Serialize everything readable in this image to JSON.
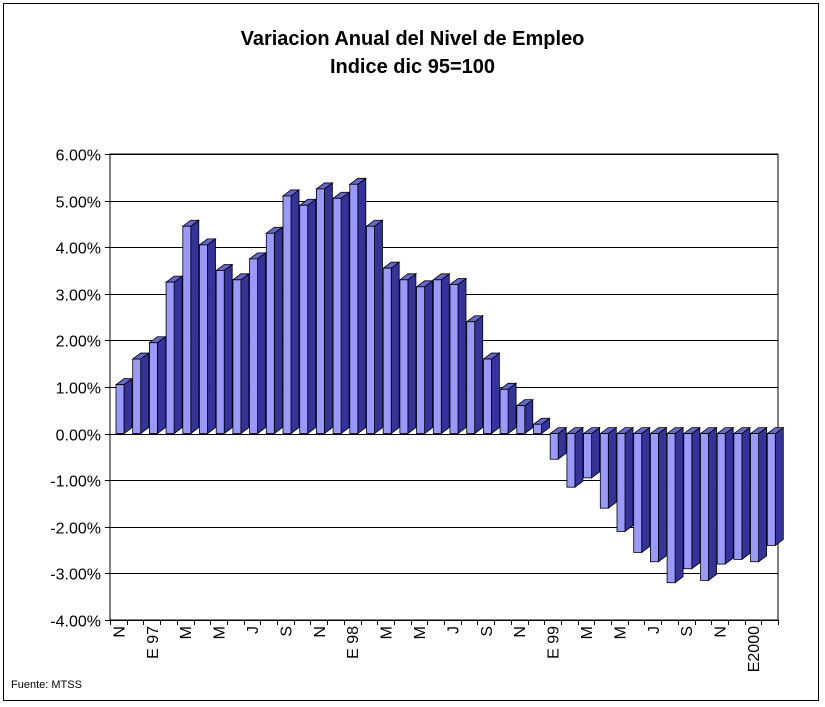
{
  "chart_data": {
    "type": "bar",
    "title": "Variacion Anual del Nivel de Empleo",
    "subtitle": "Indice dic 95=100",
    "source": "Fuente: MTSS",
    "ylim": [
      -4,
      6
    ],
    "yticks": [
      6,
      5,
      4,
      3,
      2,
      1,
      0,
      -1,
      -2,
      -3,
      -4
    ],
    "ytick_labels": [
      "6.00%",
      "5.00%",
      "4.00%",
      "3.00%",
      "2.00%",
      "1.00%",
      "0.00%",
      "-1.00%",
      "-2.00%",
      "-3.00%",
      "-4.00%"
    ],
    "grid": true,
    "legend": "none",
    "style": "3d-column",
    "colors": {
      "bar_front": "#9999ff",
      "bar_side": "#333399",
      "bar_top": "#6666cc"
    },
    "categories": [
      "N",
      "",
      "E 97",
      "",
      "M",
      "",
      "M",
      "",
      "J",
      "",
      "S",
      "",
      "N",
      "",
      "E 98",
      "",
      "M",
      "",
      "M",
      "",
      "J",
      "",
      "S",
      "",
      "N",
      "",
      "E 99",
      "",
      "M",
      "",
      "M",
      "",
      "J",
      "",
      "S",
      "",
      "N",
      "",
      "E2000",
      ""
    ],
    "values": [
      1.05,
      1.6,
      1.95,
      3.25,
      4.45,
      4.05,
      3.5,
      3.3,
      3.75,
      4.3,
      5.1,
      4.9,
      5.25,
      5.05,
      5.35,
      4.45,
      3.55,
      3.3,
      3.15,
      3.3,
      3.2,
      2.4,
      1.6,
      0.95,
      0.6,
      0.2,
      -0.55,
      -1.15,
      -0.95,
      -1.6,
      -2.1,
      -2.55,
      -2.75,
      -3.2,
      -2.9,
      -3.15,
      -2.8,
      -2.7,
      -2.75,
      -2.4
    ]
  }
}
